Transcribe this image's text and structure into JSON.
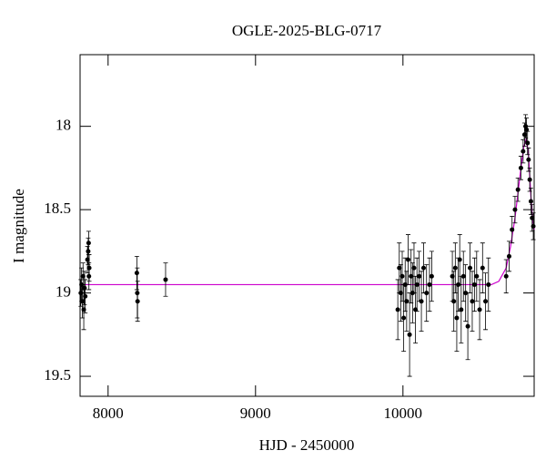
{
  "chart_data": {
    "type": "scatter",
    "title": "OGLE-2025-BLG-0717",
    "xlabel": "HJD - 2450000",
    "ylabel": "I magnitude",
    "xlim": [
      7810,
      10890
    ],
    "ylim": [
      19.62,
      17.57
    ],
    "xticks": [
      8000,
      9000,
      10000
    ],
    "yticks": [
      18,
      18.5,
      19,
      19.5
    ],
    "points": {
      "color": "#000000",
      "x": [
        7815,
        7820,
        7825,
        7830,
        7835,
        7840,
        7845,
        7860,
        7865,
        7868,
        7870,
        7872,
        8195,
        8198,
        8200,
        8390,
        9965,
        9975,
        9985,
        9995,
        10005,
        10015,
        10025,
        10035,
        10045,
        10055,
        10065,
        10075,
        10085,
        10095,
        10110,
        10125,
        10140,
        10160,
        10180,
        10195,
        10335,
        10345,
        10355,
        10365,
        10375,
        10385,
        10395,
        10410,
        10425,
        10440,
        10455,
        10470,
        10485,
        10500,
        10520,
        10540,
        10560,
        10580,
        10700,
        10720,
        10740,
        10760,
        10780,
        10800,
        10815,
        10825,
        10832,
        10838,
        10845,
        10852,
        10860,
        10868,
        10876,
        10884
      ],
      "y": [
        19.0,
        18.95,
        19.05,
        18.9,
        19.1,
        18.97,
        19.02,
        18.8,
        18.75,
        18.7,
        18.9,
        18.85,
        18.88,
        19.0,
        19.05,
        18.92,
        19.1,
        18.85,
        19.0,
        18.9,
        19.15,
        18.95,
        19.05,
        18.8,
        19.25,
        18.9,
        19.0,
        18.85,
        19.1,
        18.95,
        18.9,
        19.05,
        18.85,
        19.0,
        18.95,
        18.9,
        18.9,
        19.05,
        18.85,
        19.15,
        18.95,
        18.8,
        19.1,
        18.9,
        19.0,
        19.2,
        18.85,
        19.05,
        18.95,
        18.9,
        19.1,
        18.85,
        19.05,
        18.95,
        18.9,
        18.78,
        18.62,
        18.5,
        18.38,
        18.25,
        18.15,
        18.05,
        18.0,
        18.02,
        18.1,
        18.2,
        18.32,
        18.45,
        18.55,
        18.6
      ],
      "err": [
        0.08,
        0.1,
        0.1,
        0.08,
        0.12,
        0.1,
        0.1,
        0.08,
        0.08,
        0.07,
        0.08,
        0.08,
        0.1,
        0.15,
        0.12,
        0.1,
        0.18,
        0.15,
        0.17,
        0.15,
        0.2,
        0.16,
        0.18,
        0.15,
        0.25,
        0.16,
        0.18,
        0.15,
        0.2,
        0.16,
        0.15,
        0.18,
        0.15,
        0.17,
        0.16,
        0.15,
        0.15,
        0.18,
        0.15,
        0.2,
        0.16,
        0.15,
        0.2,
        0.15,
        0.17,
        0.2,
        0.15,
        0.18,
        0.16,
        0.15,
        0.18,
        0.15,
        0.17,
        0.16,
        0.1,
        0.09,
        0.08,
        0.08,
        0.07,
        0.07,
        0.07,
        0.07,
        0.07,
        0.07,
        0.07,
        0.07,
        0.07,
        0.08,
        0.08,
        0.08
      ]
    },
    "model": {
      "color": "#cc00cc",
      "x": [
        7810,
        10600,
        10650,
        10700,
        10730,
        10760,
        10780,
        10800,
        10820,
        10835,
        10850,
        10860,
        10870,
        10880,
        10890
      ],
      "y": [
        18.95,
        18.95,
        18.93,
        18.85,
        18.72,
        18.55,
        18.4,
        18.25,
        18.12,
        18.08,
        18.15,
        18.3,
        18.45,
        18.57,
        18.62
      ]
    }
  }
}
